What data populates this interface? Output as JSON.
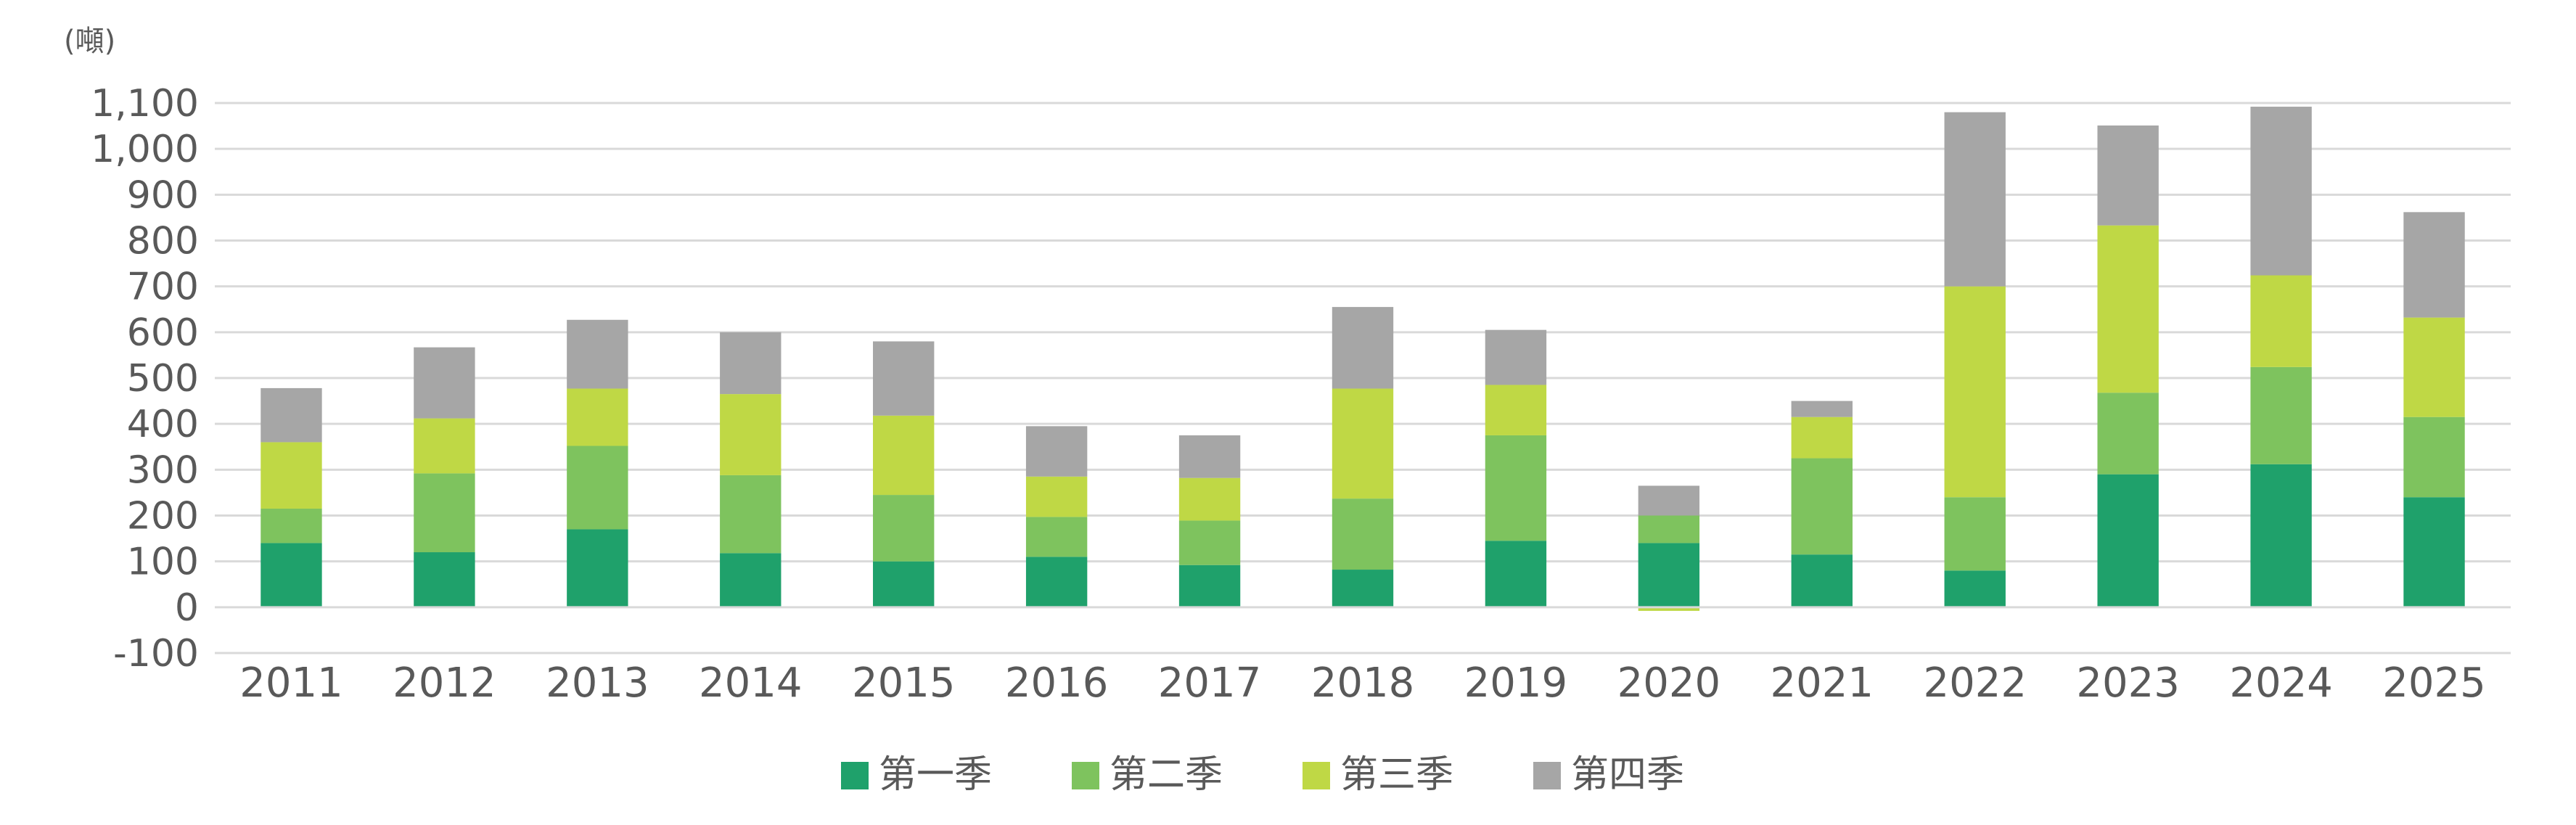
{
  "chart_data": {
    "type": "bar",
    "stacked": true,
    "unit_label": "(噸)",
    "categories": [
      "2011",
      "2012",
      "2013",
      "2014",
      "2015",
      "2016",
      "2017",
      "2018",
      "2019",
      "2020",
      "2021",
      "2022",
      "2023",
      "2024",
      "2025"
    ],
    "series": [
      {
        "name": "第一季",
        "color": "#1fa16b",
        "values": [
          140,
          120,
          170,
          118,
          100,
          110,
          92,
          82,
          145,
          140,
          115,
          80,
          290,
          312,
          240
        ]
      },
      {
        "name": "第二季",
        "color": "#7ec35e",
        "values": [
          75,
          172,
          182,
          170,
          145,
          87,
          97,
          155,
          230,
          60,
          210,
          160,
          178,
          212,
          175
        ]
      },
      {
        "name": "第三季",
        "color": "#bfd845",
        "values": [
          145,
          120,
          125,
          177,
          173,
          88,
          93,
          240,
          110,
          -8,
          90,
          460,
          365,
          200,
          217
        ]
      },
      {
        "name": "第四季",
        "color": "#a6a6a6",
        "values": [
          118,
          155,
          150,
          135,
          162,
          110,
          93,
          178,
          120,
          65,
          35,
          380,
          218,
          368,
          230
        ]
      }
    ],
    "ylim": [
      -100,
      1100
    ],
    "yticks": [
      -100,
      0,
      100,
      200,
      300,
      400,
      500,
      600,
      700,
      800,
      900,
      1000,
      1100
    ],
    "ytick_labels": [
      "-100",
      "0",
      "100",
      "200",
      "300",
      "400",
      "500",
      "600",
      "700",
      "800",
      "900",
      "1,000",
      "1,100"
    ],
    "grid": true,
    "legend_position": "bottom-center",
    "title": "",
    "xlabel": "",
    "ylabel": ""
  }
}
